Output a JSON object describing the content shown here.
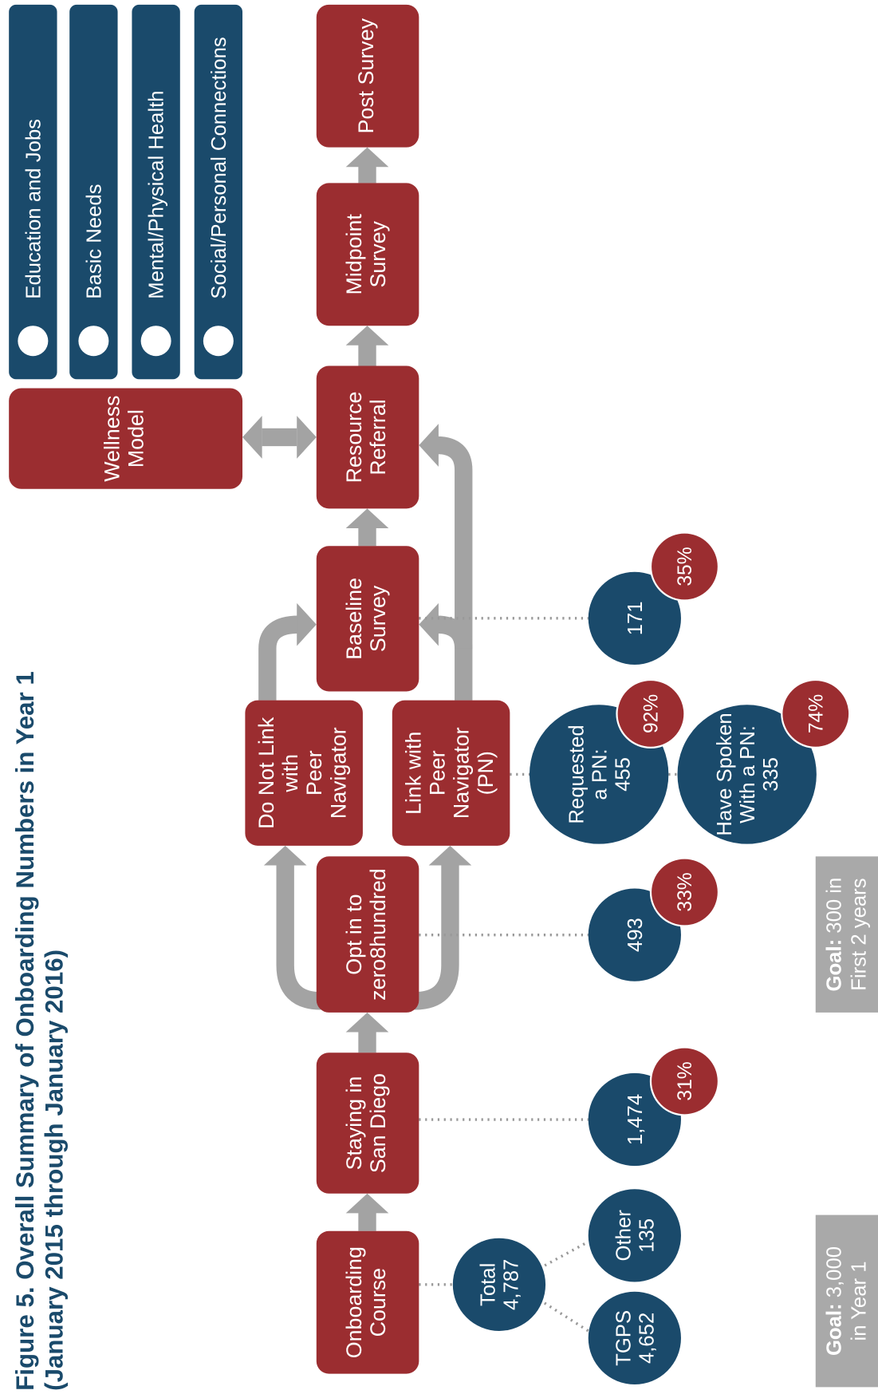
{
  "title": [
    "Figure 5. Overall Summary of Onboarding Numbers in Year 1",
    "(January 2015 through January 2016)"
  ],
  "boxes": [
    [
      "Onboarding",
      "Course"
    ],
    [
      "Staying in",
      "San Diego"
    ],
    [
      "Opt in to",
      "zero8hundred"
    ],
    [
      "Do Not Link",
      "with",
      "Peer",
      "Navigator"
    ],
    [
      "Link with",
      "Peer",
      "Navigator",
      "(PN)"
    ],
    [
      "Baseline",
      "Survey"
    ],
    [
      "Resource",
      "Referral"
    ],
    [
      "Midpoint",
      "Survey"
    ],
    [
      "Post Survey"
    ],
    [
      "Wellness",
      "Model"
    ]
  ],
  "categories": [
    "Education and Jobs",
    "Basic Needs",
    "Mental/Physical Health",
    "Social/Personal Connections"
  ],
  "circles": [
    {
      "lines": [
        "Total",
        "4,787"
      ]
    },
    {
      "lines": [
        "TGPS",
        "4,652"
      ]
    },
    {
      "lines": [
        "Other",
        "135"
      ]
    },
    {
      "lines": [
        "1,474"
      ],
      "percent": "31%"
    },
    {
      "lines": [
        "493"
      ],
      "percent": "33%"
    },
    {
      "lines": [
        "Requested",
        "a PN:",
        "455"
      ],
      "percent": "92%"
    },
    {
      "lines": [
        "Have Spoken",
        "With a PN:",
        "335"
      ],
      "percent": "74%"
    },
    {
      "lines": [
        "171"
      ],
      "percent": "35%"
    }
  ],
  "goals": [
    {
      "label": "Goal:",
      "value": "3,000",
      "note": "in Year 1"
    },
    {
      "label": "Goal:",
      "value": "300 in",
      "note": "First 2 years"
    }
  ]
}
